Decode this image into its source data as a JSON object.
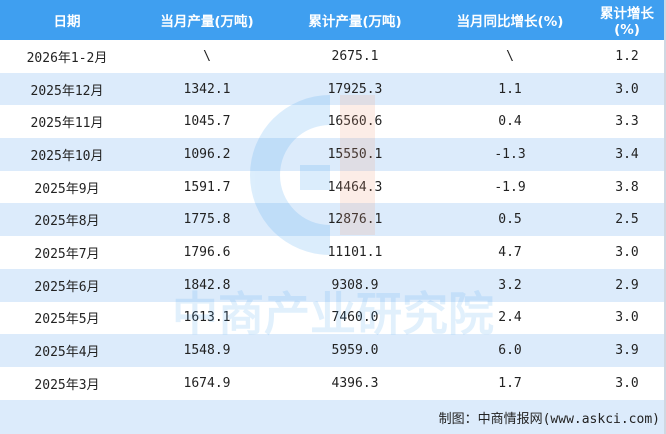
{
  "table": {
    "headers": [
      "日期",
      "当月产量(万吨)",
      "累计产量(万吨)",
      "当月同比增长(%)",
      "累计增长(%)"
    ],
    "rows": [
      [
        "2026年1-2月",
        "\\",
        "2675.1",
        "\\",
        "1.2"
      ],
      [
        "2025年12月",
        "1342.1",
        "17925.3",
        "1.1",
        "3.0"
      ],
      [
        "2025年11月",
        "1045.7",
        "16560.6",
        "0.4",
        "3.3"
      ],
      [
        "2025年10月",
        "1096.2",
        "15550.1",
        "-1.3",
        "3.4"
      ],
      [
        "2025年9月",
        "1591.7",
        "14464.3",
        "-1.9",
        "3.8"
      ],
      [
        "2025年8月",
        "1775.8",
        "12876.1",
        "0.5",
        "2.5"
      ],
      [
        "2025年7月",
        "1796.6",
        "11101.1",
        "4.7",
        "3.0"
      ],
      [
        "2025年6月",
        "1842.8",
        "9308.9",
        "3.2",
        "2.9"
      ],
      [
        "2025年5月",
        "1613.1",
        "7460.0",
        "2.4",
        "3.0"
      ],
      [
        "2025年4月",
        "1548.9",
        "5959.0",
        "6.0",
        "3.9"
      ],
      [
        "2025年3月",
        "1674.9",
        "4396.3",
        "1.7",
        "3.0"
      ]
    ]
  },
  "footer": "制图：中商情报网(www.askci.com)",
  "watermark": {
    "text": "中商产业研究院",
    "colors": {
      "blue": "#3f9ff0",
      "orange": "#f0a080"
    }
  },
  "colors": {
    "header": "#3f9ff0",
    "alt_row": "#dcebfb"
  }
}
